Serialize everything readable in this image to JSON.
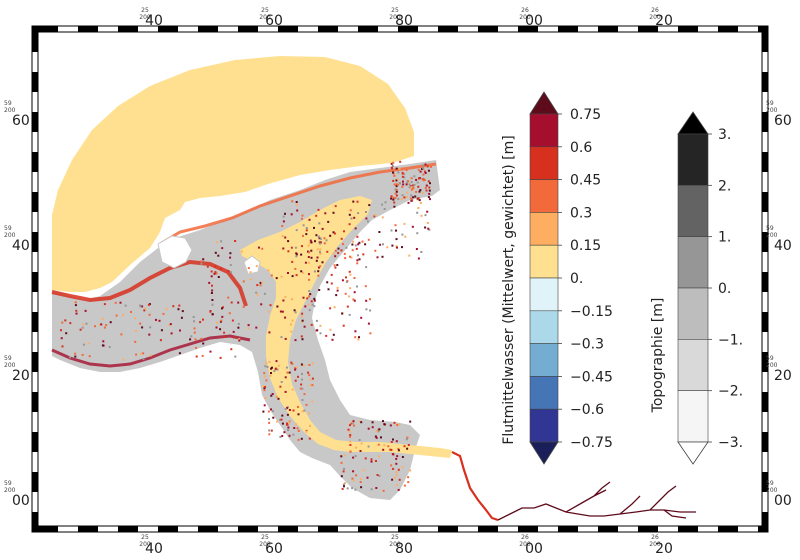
{
  "map": {
    "lon_ticks_top": [
      {
        "deg": "25",
        "min": "40",
        "sub": "200"
      },
      {
        "deg": "25",
        "min": "60",
        "sub": "200"
      },
      {
        "deg": "25",
        "min": "80",
        "sub": "200"
      },
      {
        "deg": "26",
        "min": "00",
        "sub": "200"
      },
      {
        "deg": "26",
        "min": "20",
        "sub": "200"
      }
    ],
    "lon_ticks_bottom": [
      {
        "deg": "25",
        "min": "40",
        "sub": "200"
      },
      {
        "deg": "25",
        "min": "60",
        "sub": "200"
      },
      {
        "deg": "25",
        "min": "80",
        "sub": "200"
      },
      {
        "deg": "26",
        "min": "00",
        "sub": "200"
      },
      {
        "deg": "26",
        "min": "20",
        "sub": "200"
      }
    ],
    "lat_ticks": [
      {
        "deg": "59",
        "min": "60",
        "sub": "200"
      },
      {
        "deg": "59",
        "min": "40",
        "sub": "200"
      },
      {
        "deg": "59",
        "min": "20",
        "sub": "200"
      },
      {
        "deg": "59",
        "min": "00",
        "sub": "200"
      }
    ],
    "colorbar_water": {
      "title": "Flutmittelwasser (Mittelwert, gewichtet) [m]",
      "labels": [
        "0.75",
        "0.6",
        "0.45",
        "0.3",
        "0.15",
        "0.",
        "−0.15",
        "−0.3",
        "−0.45",
        "−0.6",
        "−0.75"
      ],
      "colors": [
        "#5e0b1c",
        "#a50f2d",
        "#d7301f",
        "#f26a3c",
        "#fdae61",
        "#fee090",
        "#e0f3f8",
        "#abd9e9",
        "#74add1",
        "#4575b4",
        "#313695",
        "#1a1f5a"
      ]
    },
    "colorbar_topo": {
      "title": "Topographie [m]",
      "labels": [
        "3.",
        "2.",
        "1.",
        "0.",
        "−1.",
        "−2.",
        "−3."
      ],
      "colors": [
        "#000000",
        "#252525",
        "#636363",
        "#969696",
        "#bdbdbd",
        "#d9d9d9",
        "#f5f5f5",
        "#ffffff"
      ]
    }
  }
}
